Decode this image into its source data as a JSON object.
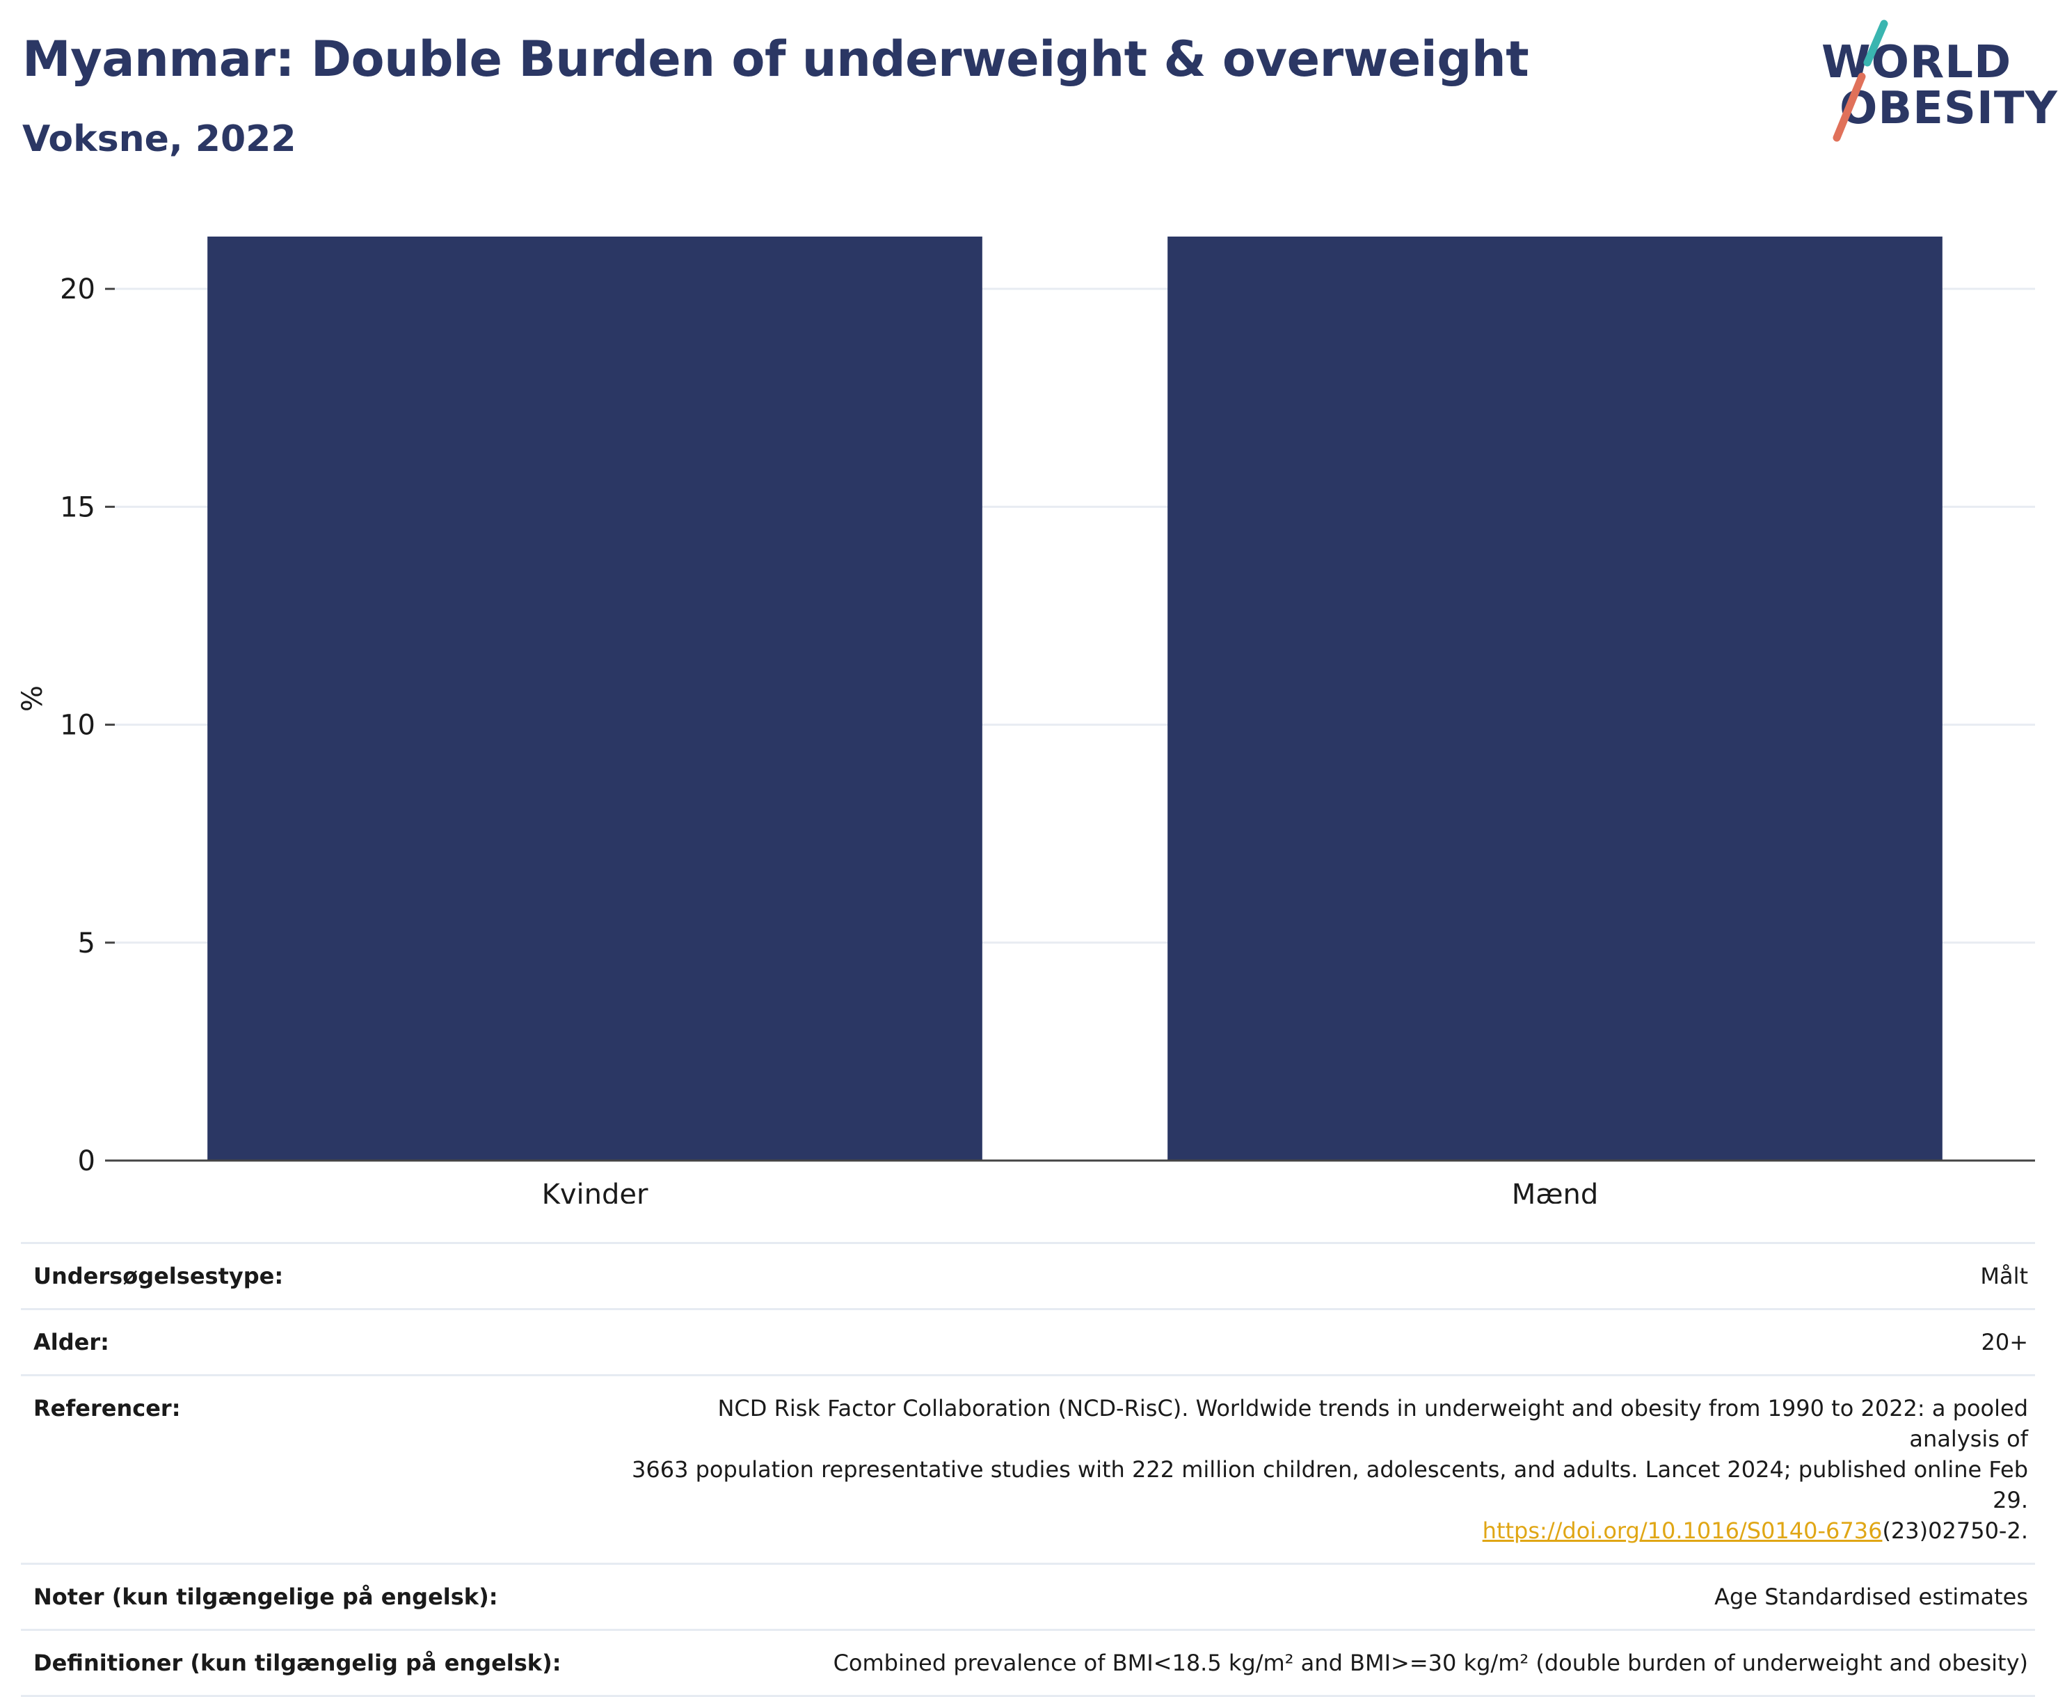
{
  "header": {
    "title": "Myanmar: Double Burden of underweight & overweight",
    "subtitle": "Voksne, 2022"
  },
  "logo": {
    "line1": "WORLD",
    "line2": "OBESITY",
    "colors": {
      "text": "#2b3764",
      "slash_top": "#3ab5b0",
      "slash_bottom": "#e0715a"
    }
  },
  "chart_data": {
    "type": "bar",
    "categories": [
      "Kvinder",
      "Mænd"
    ],
    "values": [
      21.2,
      21.2
    ],
    "title": "Myanmar: Double Burden of underweight & overweight",
    "subtitle": "Voksne, 2022",
    "xlabel": "",
    "ylabel": "%",
    "ylim": [
      0,
      21.2
    ],
    "yticks": [
      0,
      5,
      10,
      15,
      20
    ],
    "grid": true,
    "bar_color": "#2b3764"
  },
  "info": {
    "survey_type": {
      "label": "Undersøgelsestype:",
      "value": "Målt"
    },
    "age": {
      "label": "Alder:",
      "value": "20+"
    },
    "references": {
      "label": "Referencer:",
      "line1": "NCD Risk Factor Collaboration (NCD-RisC). Worldwide trends in underweight and obesity from 1990 to 2022: a pooled analysis of",
      "line2": "3663 population representative studies with 222 million children, adolescents, and adults. Lancet 2024; published online Feb 29.",
      "link": "https://doi.org/10.1016/S0140-6736",
      "link_suffix": "(23)02750-2."
    },
    "notes": {
      "label": "Noter (kun tilgængelige på engelsk):",
      "value": "Age Standardised estimates"
    },
    "definitions": {
      "label": "Definitioner (kun tilgængelig på engelsk):",
      "value": "Combined prevalence of BMI<18.5 kg/m² and BMI>=30 kg/m² (double burden of underweight and obesity)"
    }
  }
}
